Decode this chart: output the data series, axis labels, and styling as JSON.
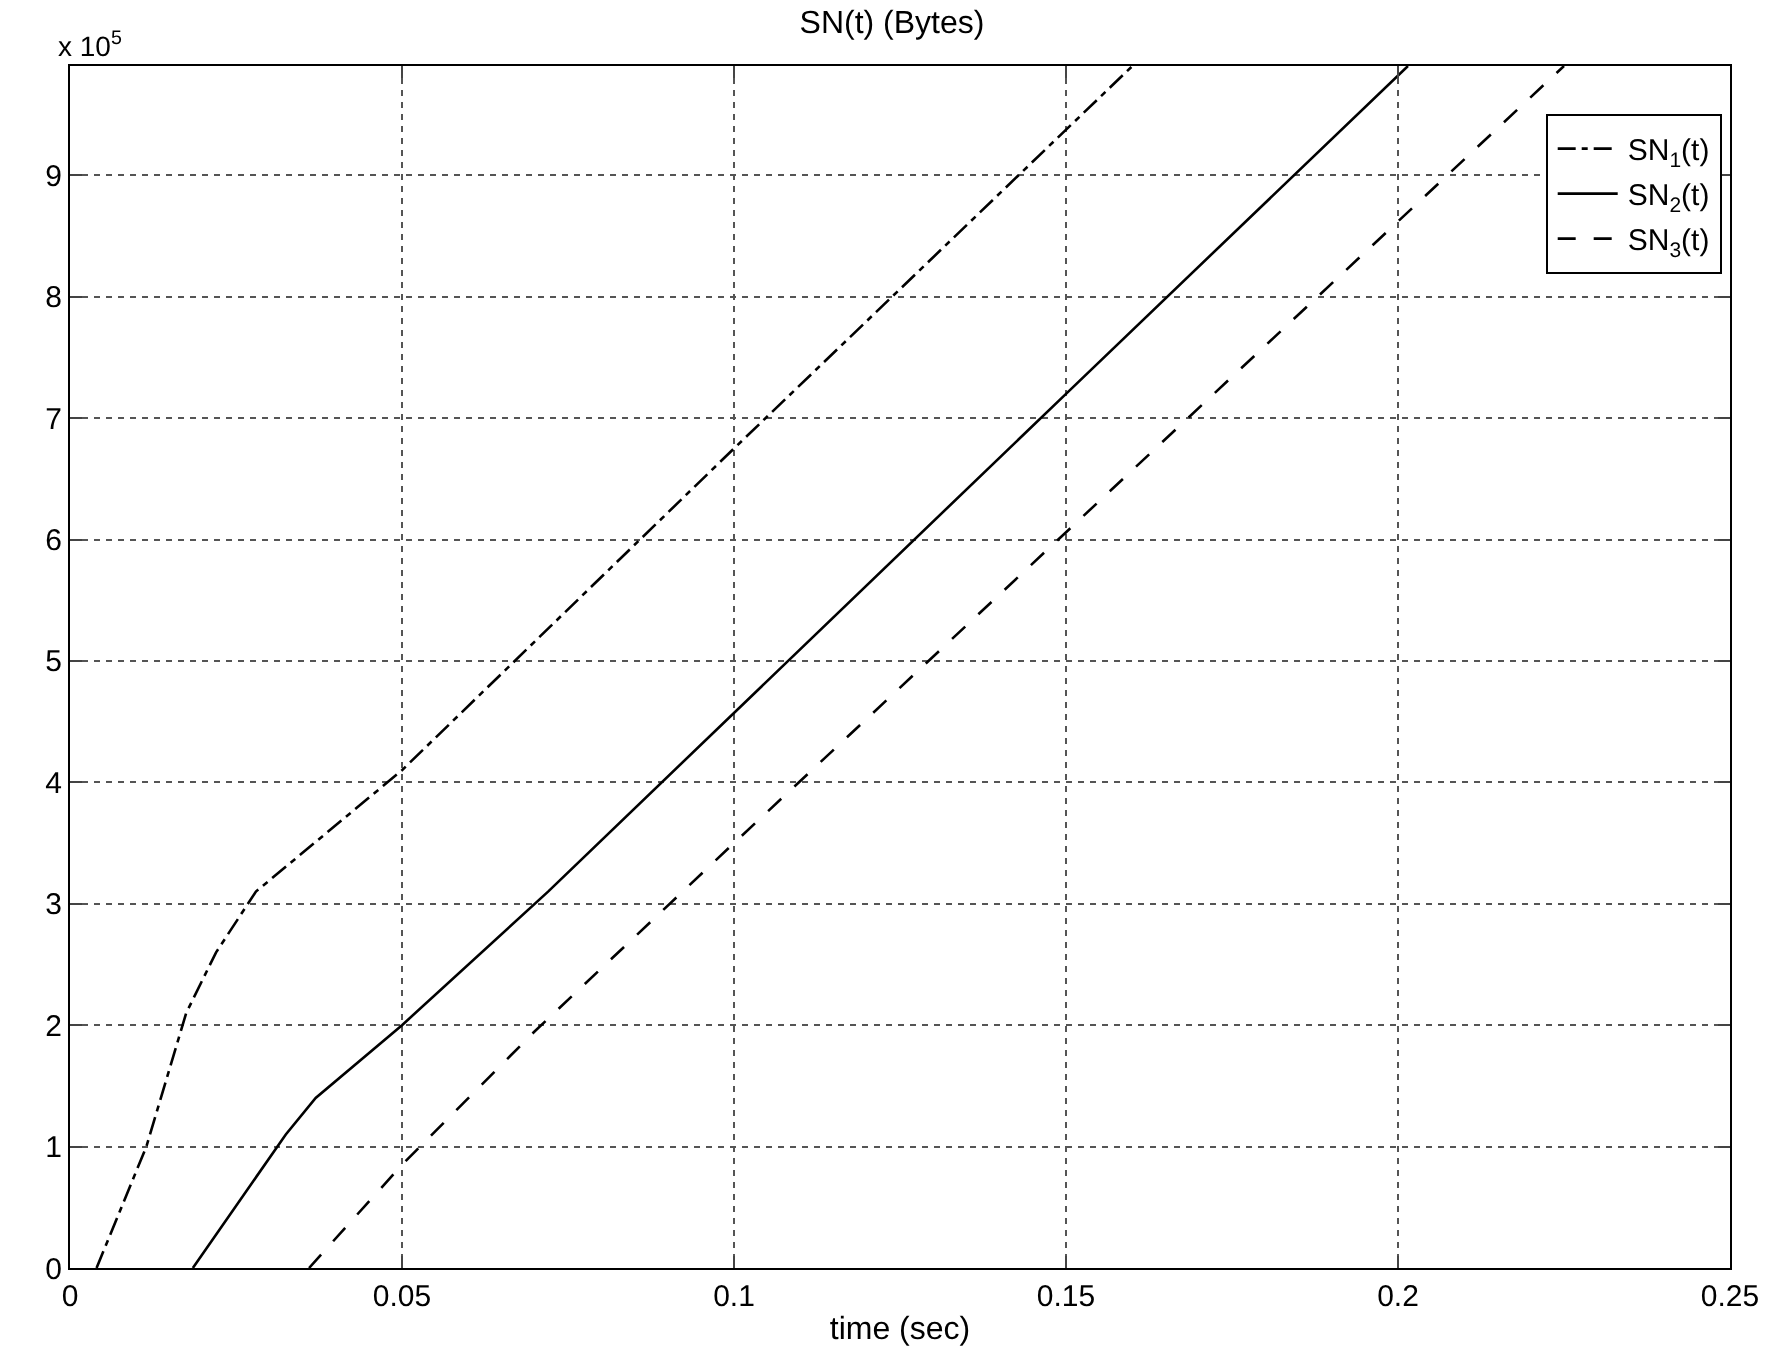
{
  "chart_data": {
    "type": "line",
    "title": "SN(t) (Bytes)",
    "xlabel": "time (sec)",
    "annotations": [
      "x 10$^{5}$"
    ],
    "xlim": [
      0,
      0.25
    ],
    "xticks": [
      0,
      0.05,
      0.1,
      0.15,
      0.2,
      0.25
    ],
    "ylim": [
      0,
      9.9
    ],
    "yticks": [
      0,
      1,
      2,
      3,
      4,
      5,
      6,
      7,
      8,
      9
    ],
    "grid": true,
    "legend": "top right",
    "series": [
      {
        "name": "SN$_{1}$(t)",
        "color": "#000000",
        "line_style": "dashdot",
        "x": [
          0.004,
          0.0115,
          0.0175,
          0.022,
          0.028,
          0.05,
          0.1,
          0.16
        ],
        "values": [
          0,
          1.0,
          2.1,
          2.6,
          3.1,
          4.1,
          6.75,
          9.9
        ]
      },
      {
        "name": "SN$_{2}$(t)",
        "color": "#000000",
        "line_style": "solid",
        "x": [
          0.0185,
          0.0325,
          0.037,
          0.05,
          0.072,
          0.15,
          0.2015
        ],
        "values": [
          0,
          1.1,
          1.4,
          2.0,
          3.1,
          7.2,
          9.9
        ]
      },
      {
        "name": "SN$_{3}$(t)",
        "color": "#000000",
        "line_style": "dashed",
        "x": [
          0.036,
          0.05,
          0.07,
          0.1,
          0.225
        ],
        "values": [
          0,
          0.85,
          1.95,
          3.5,
          9.9
        ]
      }
    ]
  }
}
